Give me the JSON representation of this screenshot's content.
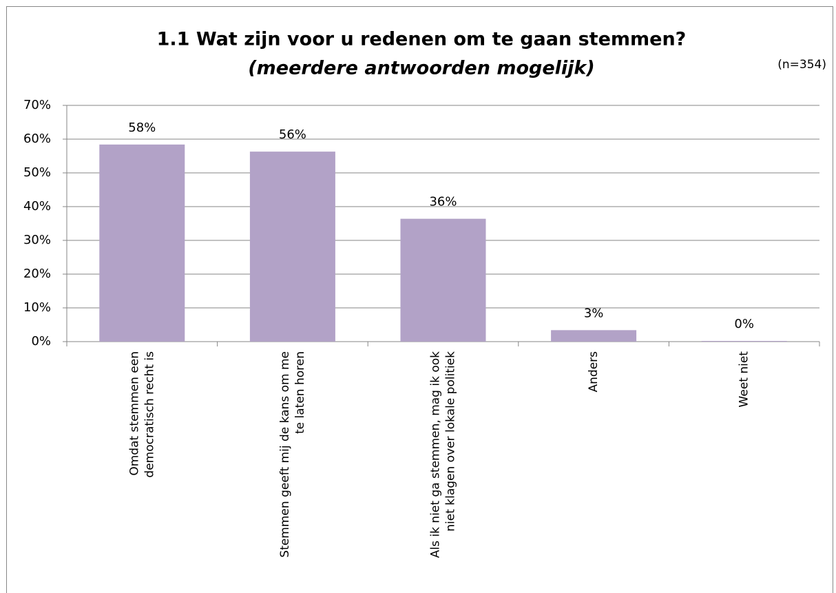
{
  "chart_data": {
    "type": "bar",
    "title": "1.1 Wat zijn voor u redenen om te gaan stemmen?",
    "subtitle": "(meerdere antwoorden mogelijk)",
    "annotation": "(n=354)",
    "categories": [
      [
        "Omdat stemmen een",
        "democratisch recht is"
      ],
      [
        "Stemmen geeft mij de kans om me",
        "te laten horen"
      ],
      [
        "Als ik niet ga stemmen, mag ik ook",
        "niet klagen over lokale politiek"
      ],
      [
        "Anders"
      ],
      [
        "Weet niet"
      ]
    ],
    "values": [
      58.4,
      56.3,
      36.4,
      3.4,
      0.2
    ],
    "value_labels": [
      "58%",
      "56%",
      "36%",
      "3%",
      "0%"
    ],
    "color": "#b2a2c7",
    "ylim": [
      0,
      70
    ],
    "yticks": [
      {
        "value": 0,
        "label": "0%"
      },
      {
        "value": 10,
        "label": "10%"
      },
      {
        "value": 20,
        "label": "20%"
      },
      {
        "value": 30,
        "label": "30%"
      },
      {
        "value": 40,
        "label": "40%"
      },
      {
        "value": 50,
        "label": "50%"
      },
      {
        "value": 60,
        "label": "60%"
      },
      {
        "value": 70,
        "label": "70%"
      }
    ],
    "grid": true
  }
}
